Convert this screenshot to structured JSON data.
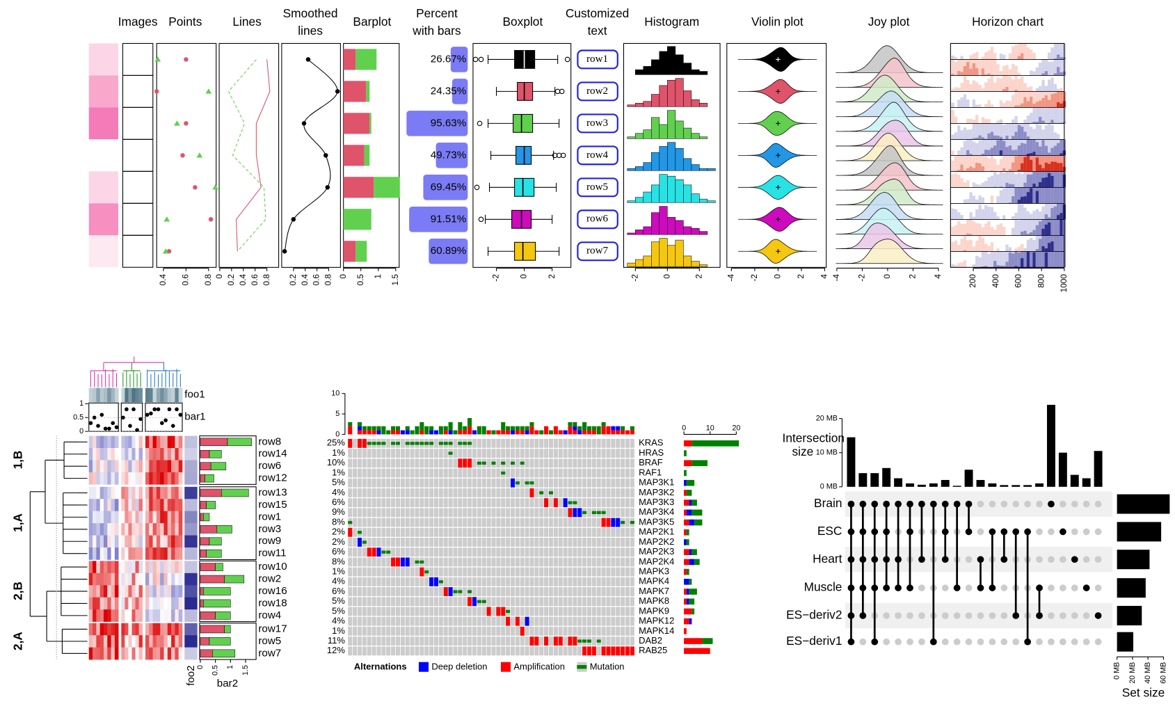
{
  "top": {
    "headers": [
      [
        "Images"
      ],
      [
        "Points"
      ],
      [
        "Lines"
      ],
      [
        "Smoothed",
        "lines"
      ],
      [
        "Barplot"
      ],
      [
        "Percent",
        "with bars"
      ],
      [
        "Boxplot"
      ],
      [
        "Customized",
        "text"
      ],
      [
        "Histogram"
      ],
      [
        "Violin plot"
      ],
      [
        "Joy plot"
      ],
      [
        "Horizon chart"
      ]
    ],
    "row_colors": [
      "#000000",
      "#DF536B",
      "#61D04F",
      "#2297E6",
      "#28E2E5",
      "#CD0BBC",
      "#F5C710"
    ],
    "points": {
      "circle": [
        0.6,
        0.34,
        0.6,
        0.57,
        0.68,
        0.82,
        0.45
      ],
      "triangle": [
        0.35,
        0.8,
        0.52,
        0.72,
        0.86,
        0.43,
        0.42
      ],
      "xlim": [
        0.34,
        0.867
      ],
      "xticks": [
        0.4,
        0.6,
        0.8
      ]
    },
    "lines": {
      "red": [
        0.8,
        0.85,
        0.62,
        0.62,
        0.7,
        0.28,
        0.3
      ],
      "green": [
        0.62,
        0.15,
        0.42,
        0.22,
        0.75,
        0.78,
        0.3
      ],
      "xlim": [
        -0.01,
        1.0
      ],
      "xticks": [
        0,
        0.2,
        0.4,
        0.6,
        0.8
      ]
    },
    "smoothed": {
      "values": [
        0.45,
        0.95,
        0.38,
        0.75,
        0.78,
        0.2,
        0.05
      ],
      "xlim": [
        0,
        1.0
      ],
      "xticks": [
        0.2,
        0.4,
        0.6,
        0.8
      ]
    },
    "barplot": {
      "red": [
        0.35,
        0.65,
        0.75,
        0.6,
        0.87,
        0,
        0.35
      ],
      "green": [
        0.6,
        0.1,
        0.05,
        0.15,
        0.75,
        0.8,
        0.32
      ],
      "xlim": [
        0,
        1.6
      ],
      "xticks": [
        0,
        0.5,
        1,
        1.5
      ]
    },
    "percent": {
      "values": [
        26.67,
        24.35,
        95.63,
        49.73,
        69.45,
        91.51,
        60.89
      ],
      "value_labels": [
        "26.67%",
        "24.35%",
        "95.63%",
        "49.73%",
        "69.45%",
        "91.51%",
        "60.89%"
      ],
      "xlim": [
        0,
        100
      ]
    },
    "boxplot": {
      "stats": [
        [
          -2.6,
          -0.7,
          0,
          0.75,
          2.4
        ],
        [
          -2.0,
          -0.5,
          0,
          0.6,
          2.2
        ],
        [
          -2.6,
          -0.8,
          -0.2,
          0.6,
          2.5
        ],
        [
          -2.4,
          -0.6,
          0,
          0.5,
          2.1
        ],
        [
          -2.5,
          -0.7,
          -0.1,
          0.7,
          2.3
        ],
        [
          -2.8,
          -0.9,
          -0.2,
          0.5,
          2.0
        ],
        [
          -2.6,
          -0.7,
          -0.1,
          0.8,
          2.5
        ]
      ],
      "outliers": [
        [
          -3.5,
          -3.1,
          3.1
        ],
        [
          2.4,
          2.7
        ],
        [
          -3.2
        ],
        [
          2.2,
          2.5,
          2.8
        ],
        [
          -3.4
        ],
        [
          -3.1
        ],
        []
      ],
      "xlim": [
        -3.68,
        3.35
      ],
      "xticks": [
        -2,
        0,
        2
      ]
    },
    "text": {
      "labels": [
        "row1",
        "row2",
        "row3",
        "row4",
        "row5",
        "row6",
        "row7"
      ]
    },
    "histogram": {
      "bins": [
        -2.5,
        -2,
        -1.5,
        -1,
        -0.5,
        0,
        0.5,
        1,
        1.5,
        2,
        2.5,
        3
      ],
      "counts": [
        [
          0,
          3,
          5,
          9,
          14,
          17,
          12,
          7,
          3,
          2,
          0
        ],
        [
          1,
          2,
          3,
          7,
          12,
          15,
          16,
          9,
          4,
          2,
          0
        ],
        [
          1,
          3,
          5,
          12,
          8,
          16,
          10,
          6,
          3,
          1,
          0
        ],
        [
          1,
          2,
          4,
          9,
          12,
          14,
          11,
          6,
          3,
          1,
          1
        ],
        [
          1,
          3,
          6,
          10,
          16,
          15,
          13,
          10,
          5,
          2,
          1
        ],
        [
          1,
          3,
          5,
          14,
          18,
          11,
          9,
          5,
          4,
          2,
          0
        ],
        [
          2,
          4,
          6,
          14,
          16,
          12,
          15,
          6,
          3,
          1,
          0
        ]
      ],
      "xlim": [
        -2.73,
        3.29
      ],
      "xticks": [
        -2,
        0,
        2
      ]
    },
    "violin": {
      "xlim": [
        -4.39,
        4.13
      ],
      "xticks": [
        -4,
        -2,
        0,
        2,
        4
      ]
    },
    "joy": {
      "xlim": [
        -4.06,
        4.36
      ],
      "xticks": [
        -4,
        -2,
        0,
        2,
        4
      ]
    },
    "horizon": {
      "xlim": [
        0,
        1000
      ],
      "xticks": [
        200,
        400,
        600,
        800,
        1000
      ]
    }
  },
  "heatmap": {
    "rows": [
      "row8",
      "row14",
      "row6",
      "row12",
      "row13",
      "row15",
      "row1",
      "row3",
      "row9",
      "row11",
      "row10",
      "row2",
      "row16",
      "row18",
      "row4",
      "row17",
      "row5",
      "row7"
    ],
    "row_slices": [
      "1,B",
      "1,A",
      "2,B",
      "2,A"
    ],
    "foo1": "foo1",
    "bar1": "bar1",
    "foo2": "foo2",
    "bar2": "bar2",
    "bar1_values": [
      0.3,
      0.5,
      0.2,
      0.6,
      0.1,
      0.1,
      0.3,
      0.15,
      0.5,
      0.8,
      0.2,
      0.8,
      0.05,
      0.45,
      0.6,
      0.65,
      0.8,
      0.8,
      0.3,
      0.4,
      0.8,
      0.2,
      0.8,
      0.6
    ],
    "bar1_ylim": [
      0,
      1.03
    ],
    "bar1_ticks": [
      0,
      0.5,
      1
    ],
    "bar2_red": [
      0.9,
      0.3,
      0.35,
      0.15,
      0.7,
      0.2,
      0.1,
      0.55,
      0.3,
      0.2,
      0.5,
      0.8,
      0.1,
      0.1,
      0.5,
      0.8,
      0.3,
      0.4
    ],
    "bar2_green": [
      0.8,
      0.4,
      0.5,
      0.3,
      0.9,
      0.3,
      0.2,
      0.5,
      0.4,
      0.5,
      0.25,
      0.65,
      0.9,
      0.9,
      0.5,
      0.2,
      0.7,
      0.75
    ],
    "bar2_xlim": [
      0,
      1.85
    ],
    "bar2_ticks": [
      0,
      0.5,
      1,
      1.5
    ]
  },
  "oncoprint": {
    "genes": [
      "KRAS",
      "HRAS",
      "BRAF",
      "RAF1",
      "MAP3K1",
      "MAP3K2",
      "MAP3K3",
      "MAP3K4",
      "MAP3K5",
      "MAP2K1",
      "MAP2K2",
      "MAP2K3",
      "MAP2K4",
      "MAPK3",
      "MAPK4",
      "MAPK7",
      "MAPK8",
      "MAPK9",
      "MAPK12",
      "MAPK14",
      "DAB2",
      "RAB25"
    ],
    "percent": [
      25,
      1,
      10,
      1,
      5,
      4,
      6,
      9,
      8,
      2,
      2,
      6,
      8,
      1,
      4,
      6,
      5,
      5,
      4,
      1,
      11,
      12
    ],
    "percent_labels": [
      "25%",
      "1%",
      "10%",
      "1%",
      "5%",
      "4%",
      "6%",
      "9%",
      "8%",
      "2%",
      "2%",
      "6%",
      "8%",
      "1%",
      "4%",
      "6%",
      "5%",
      "5%",
      "4%",
      "1%",
      "11%",
      "12%"
    ],
    "counts": [
      [
        3,
        0,
        18
      ],
      [
        0,
        0,
        1
      ],
      [
        3,
        0,
        6
      ],
      [
        0,
        0,
        1
      ],
      [
        0,
        1,
        3
      ],
      [
        1,
        0,
        2
      ],
      [
        2,
        1,
        2
      ],
      [
        1,
        2,
        4
      ],
      [
        2,
        2,
        3
      ],
      [
        1,
        0,
        1
      ],
      [
        0,
        1,
        1
      ],
      [
        2,
        1,
        2
      ],
      [
        2,
        2,
        2
      ],
      [
        1,
        0,
        1
      ],
      [
        0,
        2,
        1
      ],
      [
        1,
        1,
        3
      ],
      [
        1,
        1,
        2
      ],
      [
        3,
        0,
        1
      ],
      [
        2,
        1,
        0
      ],
      [
        1,
        0,
        0
      ],
      [
        7,
        0,
        4
      ],
      [
        10,
        0,
        0
      ]
    ],
    "right_xlim": [
      0,
      21
    ],
    "right_xticks": [
      0,
      10,
      20
    ],
    "top_ylim": [
      0,
      11
    ],
    "top_yticks": [
      0,
      5,
      10
    ],
    "legend_title": "Alternations",
    "legend": [
      "Deep deletion",
      "Amplification",
      "Mutation"
    ],
    "colors": {
      "amp": "#ff0000",
      "del": "#0000ff",
      "mut": "#008000"
    }
  },
  "upset": {
    "sets": [
      "Brain",
      "ESC",
      "Heart",
      "Muscle",
      "ES−deriv2",
      "ES−deriv1"
    ],
    "set_sizes": [
      68,
      57,
      42,
      37,
      32,
      21
    ],
    "set_xlim": [
      0,
      70
    ],
    "set_xticks": [
      {
        "value": 0,
        "label": "0 MB"
      },
      {
        "value": 20,
        "label": "20 MB"
      },
      {
        "value": 40,
        "label": "40 MB"
      },
      {
        "value": 60,
        "label": "60 MB"
      }
    ],
    "set_label": "Set size",
    "combos": [
      [
        0,
        1,
        2,
        3,
        4,
        5
      ],
      [
        0,
        1,
        2,
        3,
        4
      ],
      [
        0,
        1,
        2,
        3,
        5
      ],
      [
        0,
        1,
        2,
        3
      ],
      [
        0,
        2,
        3
      ],
      [
        0,
        1,
        3
      ],
      [
        0,
        2
      ],
      [
        0,
        5
      ],
      [
        0,
        1,
        2
      ],
      [
        0,
        3
      ],
      [
        0,
        1
      ],
      [
        2,
        3
      ],
      [
        1,
        3
      ],
      [
        1,
        2
      ],
      [
        1,
        4
      ],
      [
        1,
        5
      ],
      [
        3,
        4
      ],
      [
        0
      ],
      [
        1
      ],
      [
        2
      ],
      [
        3
      ],
      [
        4
      ]
    ],
    "sizes": [
      14.5,
      4,
      4,
      5.5,
      2.5,
      1,
      0.6,
      1,
      2,
      0.3,
      5,
      2,
      1,
      0.5,
      0.5,
      0.5,
      1,
      24,
      10,
      3.5,
      2.5,
      10.5
    ],
    "ylim": [
      0,
      25
    ],
    "yticks": [
      {
        "value": 0,
        "label": "0 MB"
      },
      {
        "value": 10,
        "label": "10 MB"
      },
      {
        "value": 20,
        "label": "20 MB"
      }
    ],
    "y_label": [
      "Intersection",
      "size"
    ]
  }
}
